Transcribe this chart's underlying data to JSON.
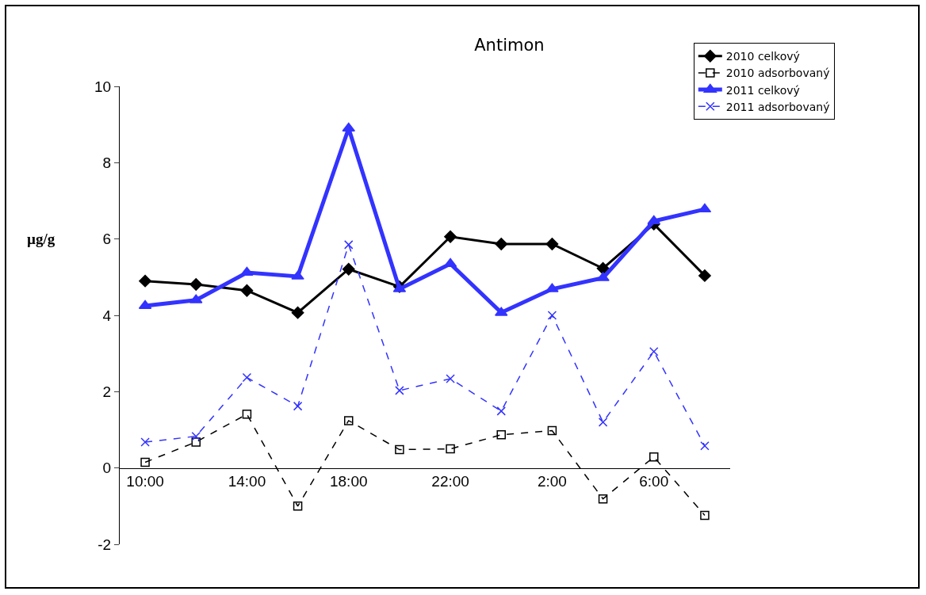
{
  "chart_data": {
    "type": "line",
    "title": "Antimon",
    "ylabel": "µg/g",
    "categories": [
      "10:00",
      null,
      "14:00",
      null,
      "18:00",
      null,
      "22:00",
      null,
      "2:00",
      null,
      "6:00",
      null
    ],
    "ylim": [
      -2,
      10
    ],
    "yticks": [
      -2,
      0,
      2,
      4,
      6,
      8,
      10
    ],
    "grid": false,
    "legend": "top right",
    "series": [
      {
        "name": "2010 celkový",
        "color": "#000000",
        "marker": "diamond",
        "line_style": "solid",
        "values": [
          4.9,
          4.81,
          4.65,
          4.07,
          5.21,
          4.75,
          6.06,
          5.87,
          5.87,
          5.23,
          6.39,
          5.04
        ]
      },
      {
        "name": "2010 adsorbovaný",
        "color": "#000000",
        "marker": "square",
        "line_style": "dashed",
        "values": [
          0.15,
          0.68,
          1.41,
          -1.0,
          1.24,
          0.48,
          0.5,
          0.87,
          0.98,
          -0.81,
          0.29,
          -1.24
        ]
      },
      {
        "name": "2011 celkový",
        "color": "#3333ff",
        "marker": "triangle",
        "line_style": "solid",
        "values": [
          4.25,
          4.4,
          5.12,
          5.02,
          8.9,
          4.69,
          5.35,
          4.07,
          4.69,
          4.98,
          6.47,
          6.78
        ]
      },
      {
        "name": "2011 adsorbovaný",
        "color": "#3333ff",
        "marker": "cross",
        "line_style": "dashed",
        "values": [
          0.68,
          0.83,
          2.37,
          1.62,
          5.85,
          2.03,
          2.34,
          1.49,
          4.0,
          1.2,
          3.05,
          0.58
        ]
      }
    ]
  }
}
